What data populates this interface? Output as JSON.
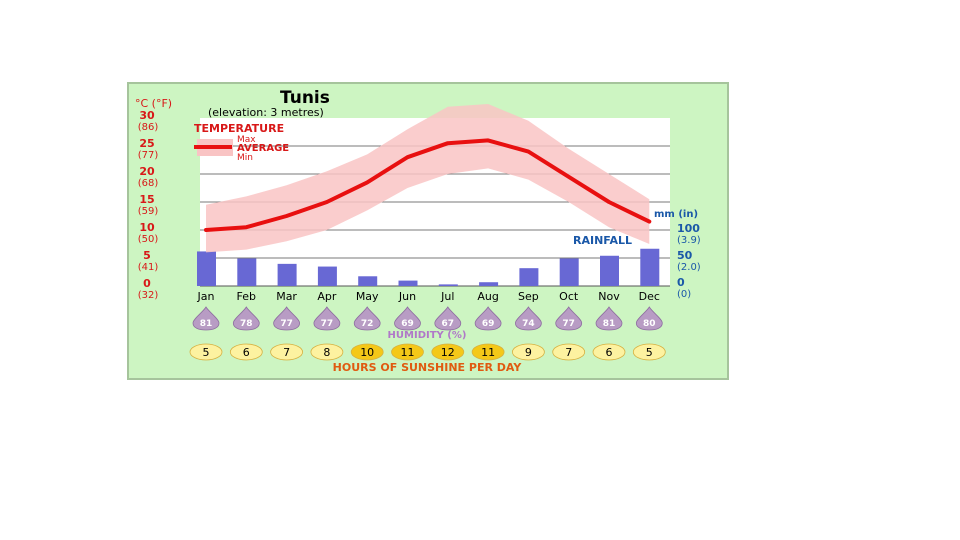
{
  "chart_data": {
    "type": "bar",
    "title": "Tunis",
    "subtitle": "(elevation: 3 metres)",
    "categories": [
      "Jan",
      "Feb",
      "Mar",
      "Apr",
      "May",
      "Jun",
      "Jul",
      "Aug",
      "Sep",
      "Oct",
      "Nov",
      "Dec"
    ],
    "temperature": {
      "label": "TEMPERATURE",
      "legend": [
        "Max",
        "AVERAGE",
        "Min"
      ],
      "axis_label": "°C (°F)",
      "ylim": [
        0,
        30
      ],
      "ticks": [
        {
          "c": "30",
          "f": "(86)",
          "v": 30
        },
        {
          "c": "25",
          "f": "(77)",
          "v": 25
        },
        {
          "c": "20",
          "f": "(68)",
          "v": 20
        },
        {
          "c": "15",
          "f": "(59)",
          "v": 15
        },
        {
          "c": "10",
          "f": "(50)",
          "v": 10
        },
        {
          "c": "5",
          "f": "(41)",
          "v": 5
        },
        {
          "c": "0",
          "f": "(32)",
          "v": 0
        }
      ],
      "series": [
        {
          "name": "Max",
          "values": [
            14.5,
            16,
            18,
            20.5,
            23.5,
            28,
            32,
            32.5,
            29.5,
            24.5,
            20,
            15.5
          ]
        },
        {
          "name": "AVERAGE",
          "values": [
            10,
            10.5,
            12.5,
            15,
            18.5,
            23,
            25.5,
            26,
            24,
            19.5,
            15,
            11.5
          ]
        },
        {
          "name": "Min",
          "values": [
            6,
            6.5,
            8,
            10,
            13.5,
            17.5,
            20,
            21,
            19,
            15,
            10.5,
            7.5
          ]
        }
      ]
    },
    "rainfall": {
      "label": "RAINFALL",
      "axis_label": "mm (in)",
      "ylim": [
        0,
        100
      ],
      "ticks": [
        {
          "mm": "100",
          "in": "(3.9)",
          "v": 100
        },
        {
          "mm": "50",
          "in": "(2.0)",
          "v": 50
        },
        {
          "mm": "0",
          "in": "(0)",
          "v": 0
        }
      ],
      "values": [
        64,
        51,
        41,
        36,
        18,
        10,
        3,
        7,
        33,
        51,
        56,
        69
      ]
    },
    "humidity": {
      "label": "HUMIDITY (%)",
      "values": [
        "81",
        "78",
        "77",
        "77",
        "72",
        "69",
        "67",
        "69",
        "74",
        "77",
        "81",
        "80"
      ]
    },
    "sunshine": {
      "label": "HOURS OF SUNSHINE PER DAY",
      "values": [
        "5",
        "6",
        "7",
        "8",
        "10",
        "11",
        "12",
        "11",
        "9",
        "7",
        "6",
        "5"
      ]
    },
    "colors": {
      "panel_bg": "#cdf5c2",
      "panel_border": "#a6c49c",
      "plot_bg": "#ffffff",
      "temp_band": "#f9c4c4",
      "temp_line": "#e81010",
      "temp_text": "#d81818",
      "rain_bar": "#6868d4",
      "rain_text": "#1a58a8",
      "humidity_drop": "#b89cc4",
      "sunshine_low": "#fdf2a0",
      "sunshine_high": "#f4c818",
      "sunshine_text": "#e05a10"
    }
  }
}
